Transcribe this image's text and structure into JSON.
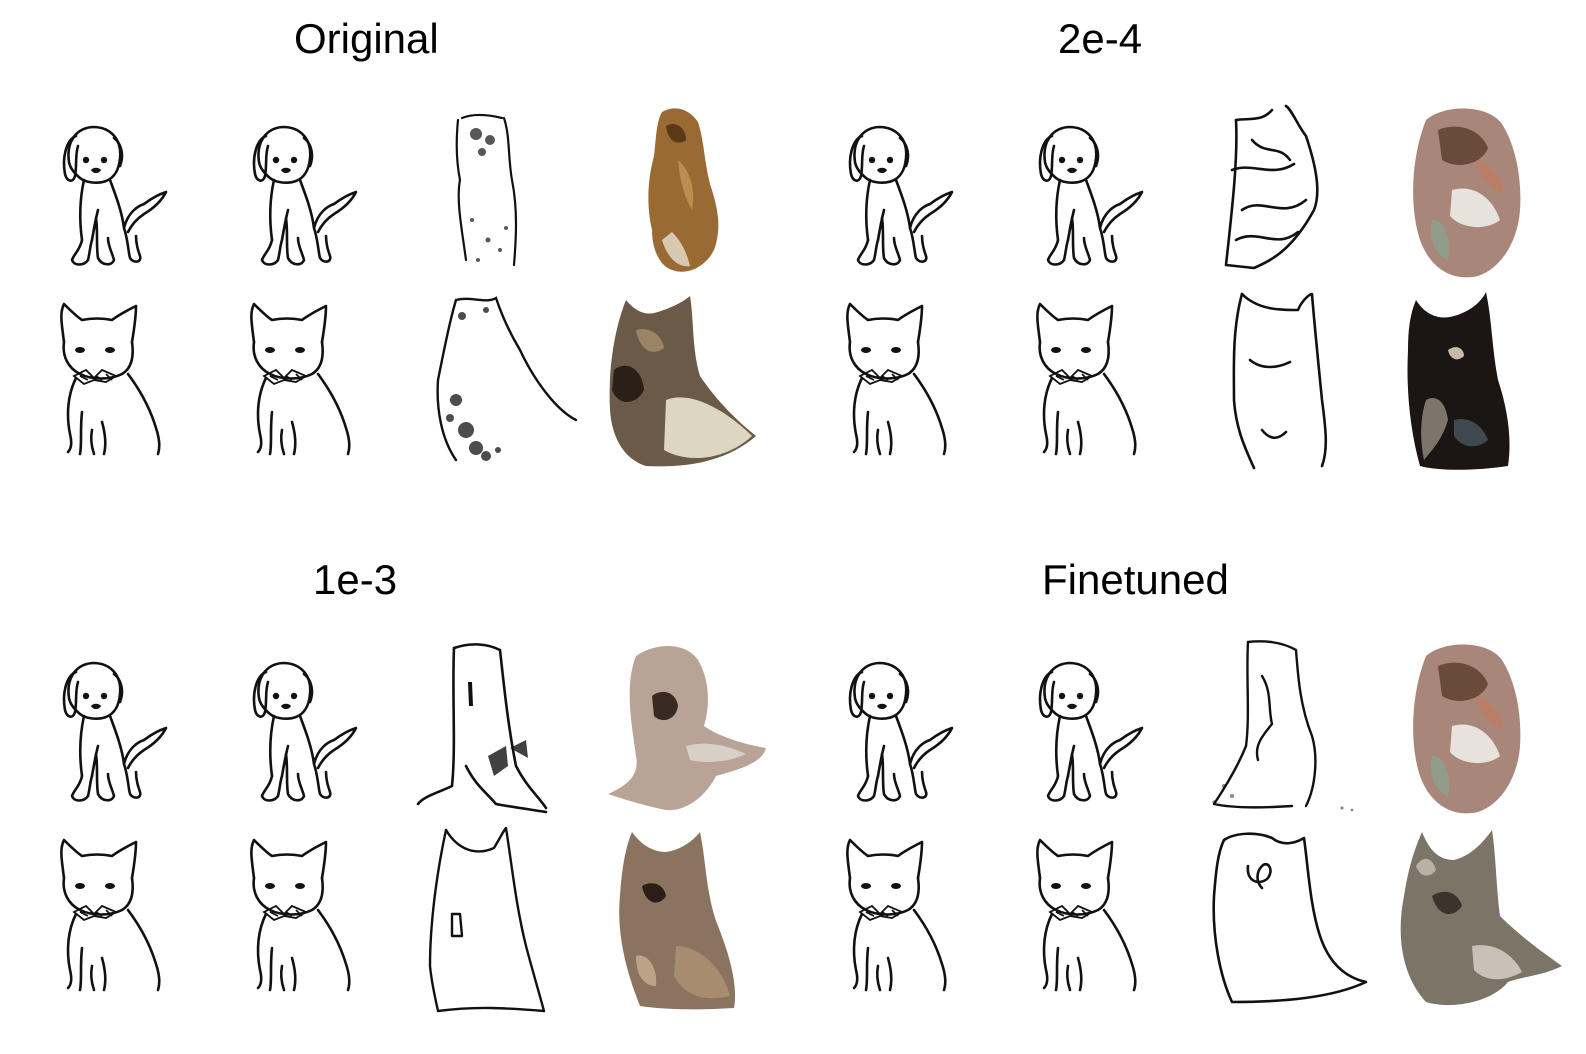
{
  "panels": [
    {
      "title": "Original",
      "rows": [
        [
          "dog-sketch",
          "dog-sketch",
          "dog-reconstruction",
          "dog-photo-brown"
        ],
        [
          "cat-sketch",
          "cat-sketch",
          "cat-reconstruction",
          "cat-photo-tabby"
        ]
      ]
    },
    {
      "title": "2e-4",
      "rows": [
        [
          "dog-sketch",
          "dog-sketch",
          "dog-reconstruction",
          "dog-photo-multicolor"
        ],
        [
          "cat-sketch",
          "cat-sketch",
          "cat-reconstruction",
          "cat-photo-black"
        ]
      ]
    },
    {
      "title": "1e-3",
      "rows": [
        [
          "dog-sketch",
          "dog-sketch",
          "dog-reconstruction",
          "dog-photo-beige"
        ],
        [
          "cat-sketch",
          "cat-sketch",
          "cat-reconstruction",
          "cat-photo-brown"
        ]
      ]
    },
    {
      "title": "Finetuned",
      "rows": [
        [
          "dog-sketch",
          "dog-sketch",
          "dog-reconstruction",
          "dog-photo-multicolor"
        ],
        [
          "cat-sketch",
          "cat-sketch",
          "cat-reconstruction",
          "cat-photo-grey"
        ]
      ]
    }
  ],
  "colors": {
    "ink": "#111111",
    "dog_photo_brown": "#9a6a34",
    "dog_photo_multicolor": "#a8877a",
    "dog_photo_beige": "#b8a396",
    "cat_photo_tabby": "#6b5a48",
    "cat_photo_black": "#1b1613",
    "cat_photo_brown": "#8a7460",
    "cat_photo_grey": "#7d7468",
    "paper": "#f1ecdf"
  }
}
